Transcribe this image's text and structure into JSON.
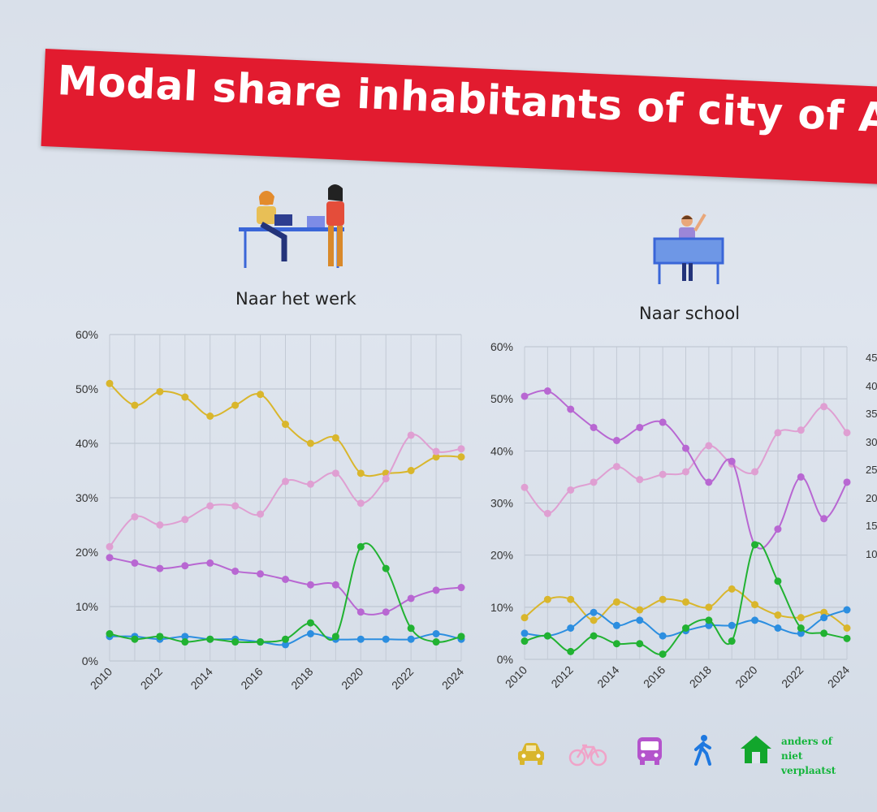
{
  "slide": {
    "title": "Modal share inhabitants of city of Antv"
  },
  "chart_data": [
    {
      "type": "line",
      "title": "Naar het werk",
      "x": [
        2010,
        2011,
        2012,
        2013,
        2014,
        2015,
        2016,
        2017,
        2018,
        2019,
        2020,
        2021,
        2022,
        2023,
        2024
      ],
      "x_ticks": [
        "2010",
        "2012",
        "2014",
        "2016",
        "2018",
        "2020",
        "2022",
        "2024"
      ],
      "y_ticks": [
        "0%",
        "10%",
        "20%",
        "30%",
        "40%",
        "50%",
        "60%"
      ],
      "ylim": [
        0,
        60
      ],
      "grid": true,
      "series": [
        {
          "icon": "car-icon",
          "color": "#d9b62c",
          "values": [
            51,
            47,
            49.5,
            48.5,
            45,
            47,
            49,
            43.5,
            40,
            41,
            34.5,
            34.5,
            35,
            37.5,
            37.5
          ]
        },
        {
          "icon": "bicycle-icon",
          "color": "#df9fd2",
          "values": [
            21,
            26.5,
            25,
            26,
            28.5,
            28.5,
            27,
            33,
            32.5,
            34.5,
            29,
            33.5,
            41.5,
            38.5,
            39
          ]
        },
        {
          "icon": "bus-icon",
          "color": "#b867d2",
          "values": [
            19,
            18,
            17,
            17.5,
            18,
            16.5,
            16,
            15,
            14,
            14,
            9,
            9,
            11.5,
            13,
            13.5
          ]
        },
        {
          "icon": "walking-icon",
          "color": "#2c8ee0",
          "values": [
            4.5,
            4.5,
            4,
            4.5,
            4,
            4,
            3.5,
            3,
            5,
            4,
            4,
            4,
            4,
            5,
            4
          ]
        },
        {
          "icon": "home-icon",
          "color": "#21b232",
          "values": [
            5,
            4,
            4.5,
            3.5,
            4,
            3.5,
            3.5,
            4,
            7,
            4.5,
            21,
            17,
            6,
            3.5,
            4.5
          ]
        }
      ]
    },
    {
      "type": "line",
      "title": "Naar school",
      "x": [
        2010,
        2011,
        2012,
        2013,
        2014,
        2015,
        2016,
        2017,
        2018,
        2019,
        2020,
        2021,
        2022,
        2023,
        2024
      ],
      "x_ticks": [
        "2010",
        "2012",
        "2014",
        "2016",
        "2018",
        "2020",
        "2022",
        "2024"
      ],
      "y_ticks": [
        "0%",
        "10%",
        "20%",
        "30%",
        "40%",
        "50%",
        "60%"
      ],
      "ylim": [
        0,
        60
      ],
      "grid": true,
      "series": [
        {
          "icon": "car-icon",
          "color": "#d9b62c",
          "values": [
            8,
            11.5,
            11.5,
            7.5,
            11,
            9.5,
            11.5,
            11,
            10,
            13.5,
            10.5,
            8.5,
            8,
            9,
            6
          ]
        },
        {
          "icon": "bicycle-icon",
          "color": "#df9fd2",
          "values": [
            33,
            28,
            32.5,
            34,
            37,
            34.5,
            35.5,
            36,
            41,
            37.5,
            36,
            43.5,
            44,
            48.5,
            43.5
          ]
        },
        {
          "icon": "bus-icon",
          "color": "#b867d2",
          "values": [
            50.5,
            51.5,
            48,
            44.5,
            42,
            44.5,
            45.5,
            40.5,
            34,
            38,
            22,
            25,
            35,
            27,
            34
          ]
        },
        {
          "icon": "walking-icon",
          "color": "#2c8ee0",
          "values": [
            5,
            4.5,
            6,
            9,
            6.5,
            7.5,
            4.5,
            5.5,
            6.5,
            6.5,
            7.5,
            6,
            5,
            8,
            9.5
          ]
        },
        {
          "icon": "home-icon",
          "color": "#21b232",
          "values": [
            3.5,
            4.5,
            1.5,
            4.5,
            3,
            3,
            1,
            6,
            7.5,
            3.5,
            22,
            15,
            6,
            5,
            4
          ]
        }
      ]
    }
  ],
  "third_chart_ticks": [
    "45",
    "40",
    "35",
    "30",
    "25",
    "20",
    "15",
    "10"
  ],
  "legend": {
    "items": [
      {
        "icon": "car-icon",
        "color": "#d9b62c"
      },
      {
        "icon": "bicycle-icon",
        "color": "#f0a3c8"
      },
      {
        "icon": "bus-icon",
        "color": "#b454cc"
      },
      {
        "icon": "walking-icon",
        "color": "#1e78e0"
      },
      {
        "icon": "home-icon",
        "color": "#12a62c",
        "label_line1": "anders of niet",
        "label_line2": "verplaatst"
      }
    ]
  }
}
